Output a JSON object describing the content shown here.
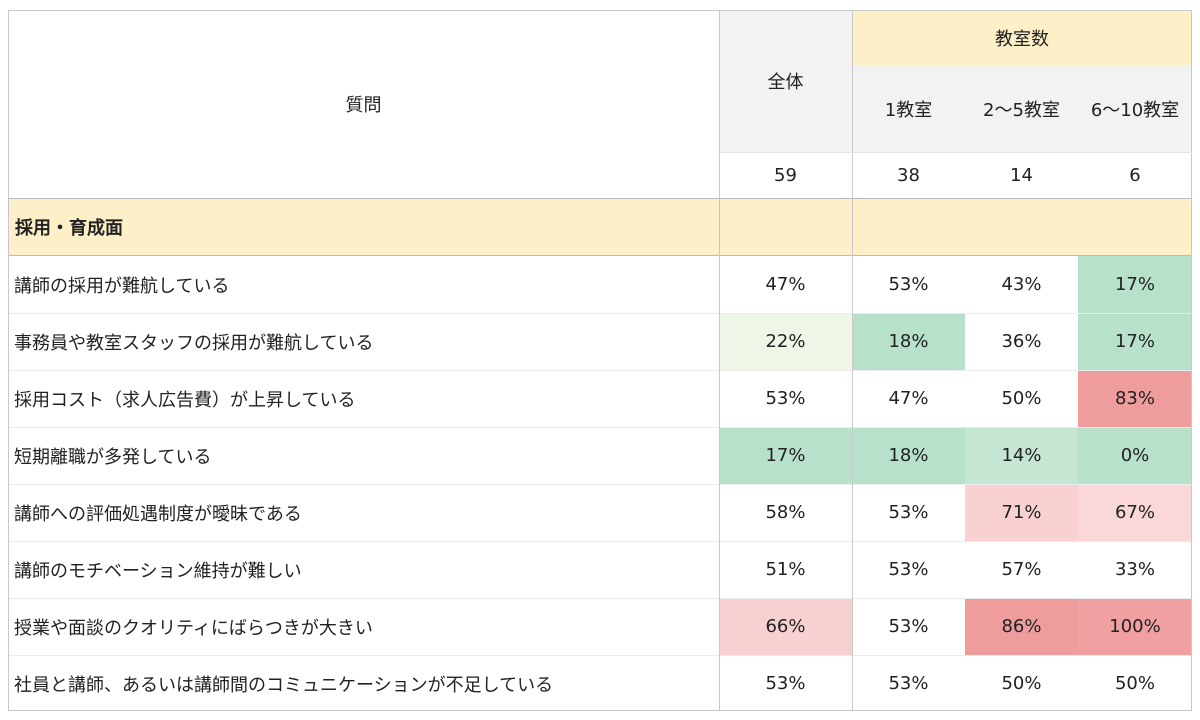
{
  "header": {
    "question": "質問",
    "total": "全体",
    "group": "教室数",
    "columns": [
      "1教室",
      "2〜5教室",
      "6〜10教室"
    ],
    "counts": [
      "59",
      "38",
      "14",
      "6"
    ]
  },
  "section": "採用・育成面",
  "rows": [
    {
      "question": "講師の採用が難航している",
      "values": [
        "47%",
        "53%",
        "43%",
        "17%"
      ],
      "fills": [
        null,
        null,
        null,
        "#b8e1cc"
      ]
    },
    {
      "question": "事務員や教室スタッフの採用が難航している",
      "values": [
        "22%",
        "18%",
        "36%",
        "17%"
      ],
      "fills": [
        "#eef6e8",
        "#b8e1cc",
        null,
        "#b8e1cc"
      ]
    },
    {
      "question": "採用コスト（求人広告費）が上昇している",
      "values": [
        "53%",
        "47%",
        "50%",
        "83%"
      ],
      "fills": [
        null,
        null,
        null,
        "#ef9c9d"
      ]
    },
    {
      "question": "短期離職が多発している",
      "values": [
        "17%",
        "18%",
        "14%",
        "0%"
      ],
      "fills": [
        "#b8e1cc",
        "#b8e1cc",
        "#c4e6d2",
        "#b8e1cc"
      ]
    },
    {
      "question": "講師への評価処遇制度が曖昧である",
      "values": [
        "58%",
        "53%",
        "71%",
        "67%"
      ],
      "fills": [
        null,
        null,
        "#f9d1d2",
        "#fad8d9"
      ]
    },
    {
      "question": "講師のモチベーション維持が難しい",
      "values": [
        "51%",
        "53%",
        "57%",
        "33%"
      ],
      "fills": [
        null,
        null,
        null,
        null
      ]
    },
    {
      "question": "授業や面談のクオリティにばらつきが大きい",
      "values": [
        "66%",
        "53%",
        "86%",
        "100%"
      ],
      "fills": [
        "#f7d0d2",
        null,
        "#ef9c9d",
        "#f0a0a1"
      ]
    },
    {
      "question": "社員と講師、あるいは講師間のコミュニケーションが不足している",
      "values": [
        "53%",
        "53%",
        "50%",
        "50%"
      ],
      "fills": [
        null,
        null,
        null,
        null
      ]
    }
  ]
}
